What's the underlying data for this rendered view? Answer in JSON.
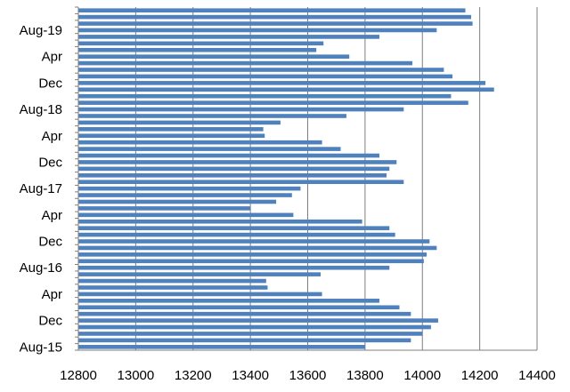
{
  "chart_data": {
    "type": "bar",
    "orientation": "horizontal",
    "title": "",
    "xlabel": "",
    "ylabel": "",
    "xlim": [
      12800,
      14400
    ],
    "x_ticks": [
      12800,
      13000,
      13200,
      13400,
      13600,
      13800,
      14000,
      14200,
      14400
    ],
    "grid": "vertical major gridlines",
    "bar_color": "#4F81BD",
    "grid_color": "#7F7F7F",
    "category_order": "bottom-to-top",
    "y_tick_labels": [
      {
        "index": 0,
        "label": "Aug-15"
      },
      {
        "index": 4,
        "label": "Dec"
      },
      {
        "index": 8,
        "label": "Apr"
      },
      {
        "index": 12,
        "label": "Aug-16"
      },
      {
        "index": 16,
        "label": "Dec"
      },
      {
        "index": 20,
        "label": "Apr"
      },
      {
        "index": 24,
        "label": "Aug-17"
      },
      {
        "index": 28,
        "label": "Dec"
      },
      {
        "index": 32,
        "label": "Apr"
      },
      {
        "index": 36,
        "label": "Aug-18"
      },
      {
        "index": 40,
        "label": "Dec"
      },
      {
        "index": 44,
        "label": "Apr"
      },
      {
        "index": 48,
        "label": "Aug-19"
      }
    ],
    "values": [
      13800,
      13960,
      14000,
      14030,
      14055,
      13960,
      13920,
      13850,
      13650,
      13460,
      13455,
      13645,
      13885,
      14005,
      14015,
      14050,
      14025,
      13905,
      13885,
      13790,
      13550,
      13400,
      13490,
      13545,
      13575,
      13935,
      13875,
      13885,
      13910,
      13850,
      13715,
      13650,
      13450,
      13445,
      13505,
      13735,
      13935,
      14160,
      14100,
      14250,
      14220,
      14105,
      14075,
      13965,
      13745,
      13630,
      13655,
      13850,
      14050,
      14175,
      14170,
      14150
    ]
  }
}
